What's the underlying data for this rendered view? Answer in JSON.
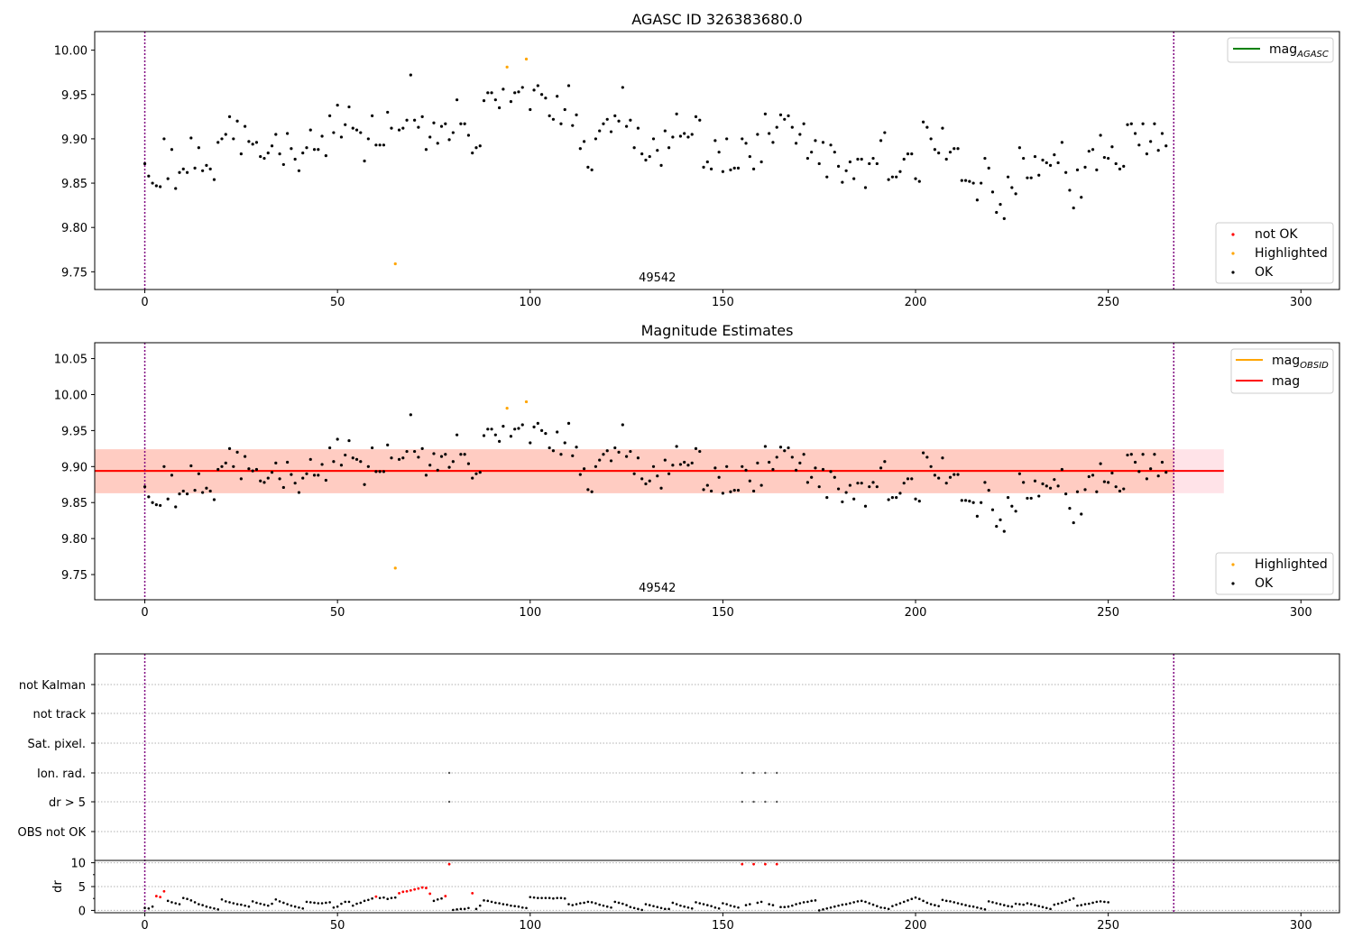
{
  "figure": {
    "colors": {
      "ok": "#000000",
      "not_ok": "#ff0000",
      "highlighted": "#ffa500",
      "agasc_line": "#008000",
      "obsid_line": "#ffa500",
      "mag_line": "#ff0000",
      "band_mag": "#ffc0cb",
      "band_obsid": "#ffa07a",
      "vline": "#800080",
      "grid": "#b0b0b0"
    }
  },
  "chart_data": [
    {
      "type": "scatter",
      "title": "AGASC ID 326383680.0",
      "xlim": [
        -13,
        310
      ],
      "ylim": [
        9.73,
        10.021
      ],
      "xticks": [
        0,
        50,
        100,
        150,
        200,
        250,
        300
      ],
      "xtick_labels": [
        "0",
        "50",
        "100",
        "150",
        "200",
        "250",
        "300"
      ],
      "yticks": [
        9.75,
        9.8,
        9.85,
        9.9,
        9.95,
        10.0
      ],
      "ytick_labels": [
        "9.75",
        "9.80",
        "9.85",
        "9.90",
        "9.95",
        "10.00"
      ],
      "obsid_label": "49542",
      "obsid_label_x": 133,
      "vlines_x": [
        0,
        267
      ],
      "line_legend": [
        {
          "label": "mag",
          "sub": "AGASC",
          "color_key": "agasc_line"
        }
      ],
      "line_legend_placement": "upper right",
      "marker_legend": [
        {
          "label": "not OK",
          "color_key": "not_ok"
        },
        {
          "label": "Highlighted",
          "color_key": "highlighted"
        },
        {
          "label": "OK",
          "color_key": "ok"
        }
      ],
      "marker_legend_placement": "lower right",
      "highlighted_points": [
        {
          "x": 65,
          "y": 9.759
        },
        {
          "x": 94,
          "y": 9.981
        },
        {
          "x": 99,
          "y": 9.99
        }
      ],
      "series_ok_y": [
        9.872,
        9.858,
        9.85,
        9.847,
        9.846,
        9.9,
        9.855,
        9.888,
        9.844,
        9.862,
        9.866,
        9.862,
        9.901,
        9.867,
        9.89,
        9.864,
        9.87,
        9.866,
        9.854,
        9.896,
        9.9,
        9.905,
        9.925,
        9.9,
        9.92,
        9.883,
        9.914,
        9.897,
        9.894,
        9.896,
        9.88,
        9.878,
        9.884,
        9.892,
        9.905,
        9.883,
        9.871,
        9.906,
        9.889,
        9.877,
        9.864,
        9.884,
        9.89,
        9.91,
        9.888,
        9.888,
        9.903,
        9.881,
        9.926,
        9.907,
        9.938,
        9.902,
        9.916,
        9.936,
        9.912,
        9.91,
        9.907,
        9.875,
        9.9,
        9.926,
        9.893,
        9.893,
        9.893,
        9.93,
        9.912,
        9.91,
        9.91,
        9.912,
        9.921,
        9.972,
        9.921,
        9.913,
        9.925,
        9.888,
        9.902,
        9.918,
        9.895,
        9.914,
        9.917,
        9.899,
        9.907,
        9.944,
        9.917,
        9.917,
        9.904,
        9.884,
        9.89,
        9.892,
        9.943,
        9.952,
        9.952,
        9.944,
        9.935,
        9.956,
        9.935,
        9.942,
        9.952,
        9.953,
        9.958,
        9.963,
        9.933,
        9.955,
        9.96,
        9.95,
        9.946,
        9.926,
        9.922,
        9.948,
        9.917,
        9.933,
        9.96,
        9.915,
        9.927,
        9.889,
        9.897,
        9.868,
        9.865,
        9.9,
        9.909,
        9.917,
        9.922,
        9.908,
        9.926,
        9.92,
        9.958,
        9.914,
        9.921,
        9.89,
        9.912,
        9.883,
        9.876,
        9.88,
        9.9,
        9.887,
        9.87,
        9.909,
        9.89,
        9.902,
        9.928,
        9.903,
        9.906,
        9.902,
        9.905,
        9.925,
        9.921,
        9.868,
        9.874,
        9.866,
        9.898,
        9.885,
        9.863,
        9.9,
        9.865,
        9.867,
        9.867,
        9.9,
        9.895,
        9.88,
        9.866,
        9.905,
        9.874,
        9.928,
        9.906,
        9.896,
        9.913,
        9.927,
        9.922,
        9.926,
        9.913,
        9.895,
        9.905,
        9.917,
        9.878,
        9.885,
        9.898,
        9.872,
        9.896,
        9.857,
        9.893,
        9.885,
        9.869,
        9.851,
        9.864,
        9.874,
        9.855,
        9.877,
        9.877,
        9.845,
        9.872,
        9.878,
        9.872,
        9.898,
        9.907,
        9.854,
        9.857,
        9.857,
        9.863,
        9.877,
        9.883,
        9.883,
        9.855,
        9.852,
        9.919,
        9.913,
        9.9,
        9.888,
        9.884,
        9.912,
        9.877,
        9.885,
        9.889,
        9.889,
        9.853,
        9.853,
        9.852,
        9.85,
        9.831,
        9.85,
        9.878,
        9.867,
        9.84,
        9.817,
        9.826,
        9.81,
        9.857,
        9.845,
        9.838,
        9.89,
        9.878,
        9.856,
        9.856,
        9.88,
        9.859,
        9.876,
        9.873,
        9.87,
        9.882,
        9.873,
        9.896,
        9.862,
        9.842,
        9.822,
        9.865,
        9.834,
        9.868,
        9.886,
        9.888,
        9.865,
        9.904,
        9.879,
        9.878,
        9.891,
        9.872,
        9.866,
        9.869,
        9.916,
        9.917,
        9.906,
        9.893,
        9.917,
        9.883,
        9.897,
        9.917,
        9.887,
        9.906,
        9.892
      ]
    },
    {
      "type": "scatter",
      "title": "Magnitude Estimates",
      "xlim": [
        -13,
        310
      ],
      "ylim": [
        9.715,
        10.072
      ],
      "xticks": [
        0,
        50,
        100,
        150,
        200,
        250,
        300
      ],
      "xtick_labels": [
        "0",
        "50",
        "100",
        "150",
        "200",
        "250",
        "300"
      ],
      "yticks": [
        9.75,
        9.8,
        9.85,
        9.9,
        9.95,
        10.0,
        10.05
      ],
      "ytick_labels": [
        "9.75",
        "9.80",
        "9.85",
        "9.90",
        "9.95",
        "10.00",
        "10.05"
      ],
      "obsid_label": "49542",
      "obsid_label_x": 133,
      "vlines_x": [
        0,
        267
      ],
      "mag_band": {
        "x": [
          -13,
          280
        ],
        "y": [
          9.863,
          9.924
        ]
      },
      "obsid_band": {
        "x": [
          -13,
          267
        ],
        "y": [
          9.863,
          9.924
        ]
      },
      "mag_line": {
        "x": [
          -13,
          280
        ],
        "y": 9.894
      },
      "obsid_line": {
        "x": [
          -13,
          267
        ],
        "y": 9.894
      },
      "line_legend": [
        {
          "label": "mag",
          "sub": "OBSID",
          "color_key": "obsid_line"
        },
        {
          "label": "mag",
          "sub": "",
          "color_key": "mag_line"
        }
      ],
      "line_legend_placement": "upper right",
      "marker_legend": [
        {
          "label": "Highlighted",
          "color_key": "highlighted"
        },
        {
          "label": "OK",
          "color_key": "ok"
        }
      ],
      "marker_legend_placement": "lower right",
      "highlighted_points": [
        {
          "x": 65,
          "y": 9.759
        },
        {
          "x": 94,
          "y": 9.981
        },
        {
          "x": 99,
          "y": 9.99
        }
      ],
      "series_ok_source": "same as panel 1"
    },
    {
      "type": "scatter",
      "title": "",
      "xlim": [
        -13,
        310
      ],
      "xticks": [
        0,
        50,
        100,
        150,
        200,
        250,
        300
      ],
      "xtick_labels": [
        "0",
        "50",
        "100",
        "150",
        "200",
        "250",
        "300"
      ],
      "vlines_x": [
        0,
        267
      ],
      "flag_rows": [
        "not Kalman",
        "not track",
        "Sat. pixel.",
        "Ion. rad.",
        "dr > 5",
        "OBS not OK"
      ],
      "flags": {
        "Ion. rad.": [
          79,
          155,
          158,
          161,
          164
        ],
        "dr > 5": [
          79,
          155,
          158,
          161,
          164
        ]
      },
      "dr": {
        "ylabel": "dr",
        "ylim": [
          -0.3,
          10.3
        ],
        "yticks": [
          0,
          5,
          10
        ],
        "ytick_labels": [
          "0",
          "5",
          "10"
        ],
        "minor_yticks": [
          2.5,
          7.5
        ],
        "red_points": [
          {
            "x": 3,
            "y": 3.0
          },
          {
            "x": 4,
            "y": 2.8
          },
          {
            "x": 5,
            "y": 4.0
          },
          {
            "x": 60,
            "y": 2.9
          },
          {
            "x": 66,
            "y": 3.6
          },
          {
            "x": 67,
            "y": 3.9
          },
          {
            "x": 68,
            "y": 4.0
          },
          {
            "x": 69,
            "y": 4.2
          },
          {
            "x": 70,
            "y": 4.4
          },
          {
            "x": 71,
            "y": 4.6
          },
          {
            "x": 72,
            "y": 4.8
          },
          {
            "x": 73,
            "y": 4.7
          },
          {
            "x": 74,
            "y": 3.5
          },
          {
            "x": 78,
            "y": 3.0
          },
          {
            "x": 79,
            "y": 9.7
          },
          {
            "x": 85,
            "y": 3.6
          },
          {
            "x": 155,
            "y": 9.7
          },
          {
            "x": 158,
            "y": 9.7
          },
          {
            "x": 161,
            "y": 9.7
          },
          {
            "x": 164,
            "y": 9.7
          }
        ],
        "ok_y": [
          0.5,
          0.4,
          0.8,
          2.6,
          2.6,
          3.2,
          2.0,
          1.7,
          1.5,
          1.3,
          2.6,
          2.4,
          2.1,
          1.7,
          1.3,
          1.1,
          0.8,
          0.6,
          0.4,
          0.2,
          2.3,
          1.9,
          1.7,
          1.5,
          1.3,
          1.2,
          1.0,
          0.8,
          1.9,
          1.6,
          1.4,
          1.2,
          1.0,
          1.4,
          2.3,
          1.9,
          1.6,
          1.3,
          1.0,
          0.8,
          0.6,
          0.4,
          1.8,
          1.7,
          1.6,
          1.5,
          1.5,
          1.6,
          1.7,
          0.6,
          0.8,
          1.4,
          1.8,
          1.8,
          1.0,
          1.4,
          1.6,
          2.0,
          2.2,
          2.5,
          2.3,
          2.6,
          2.7,
          2.4,
          2.6,
          2.7,
          2.4,
          2.3,
          2.5,
          2.6,
          2.5,
          2.7,
          2.9,
          2.6,
          1.6,
          2.0,
          2.3,
          2.5,
          2.7,
          0.0,
          0.1,
          0.2,
          0.3,
          0.3,
          0.5,
          0.1,
          0.3,
          1.0,
          2.1,
          2.0,
          1.8,
          1.6,
          1.5,
          1.3,
          1.2,
          1.0,
          0.9,
          0.8,
          0.6,
          0.5,
          2.8,
          2.7,
          2.6,
          2.6,
          2.6,
          2.6,
          2.5,
          2.6,
          2.6,
          2.5,
          1.3,
          1.1,
          1.3,
          1.5,
          1.6,
          1.8,
          1.7,
          1.5,
          1.2,
          1.0,
          0.8,
          0.6,
          1.8,
          1.6,
          1.4,
          1.1,
          0.7,
          0.5,
          0.3,
          0.1,
          1.3,
          1.1,
          0.9,
          0.7,
          0.5,
          0.3,
          0.3,
          1.6,
          1.3,
          1.0,
          0.8,
          0.6,
          0.4,
          1.7,
          1.5,
          1.3,
          1.1,
          0.9,
          0.6,
          0.4,
          1.5,
          1.3,
          1.0,
          0.8,
          0.6,
          0.5,
          1.1,
          1.3,
          1.4,
          1.6,
          1.8,
          1.4,
          1.3,
          1.1,
          0.9,
          0.7,
          0.7,
          0.8,
          1.0,
          1.3,
          1.5,
          1.7,
          1.8,
          2.0,
          2.1,
          0.0,
          0.2,
          0.4,
          0.6,
          0.8,
          1.0,
          1.2,
          1.3,
          1.5,
          1.7,
          1.9,
          2.0,
          1.8,
          1.5,
          1.2,
          0.9,
          0.6,
          0.5,
          0.3,
          0.9,
          1.2,
          1.5,
          1.8,
          2.1,
          2.4,
          2.7,
          2.4,
          2.0,
          1.6,
          1.3,
          1.1,
          0.9,
          2.2,
          2.0,
          1.9,
          1.7,
          1.5,
          1.3,
          1.1,
          0.9,
          0.8,
          0.6,
          0.4,
          0.2,
          1.9,
          1.7,
          1.5,
          1.3,
          1.1,
          0.9,
          0.8,
          1.4,
          1.3,
          1.2,
          1.5,
          1.3,
          1.1,
          0.9,
          0.7,
          0.5,
          0.3,
          1.2,
          1.4,
          1.6,
          1.9,
          2.2,
          2.5,
          1.0,
          1.1,
          1.3,
          1.4,
          1.6,
          1.8,
          1.9,
          1.8,
          1.7
        ]
      }
    }
  ]
}
